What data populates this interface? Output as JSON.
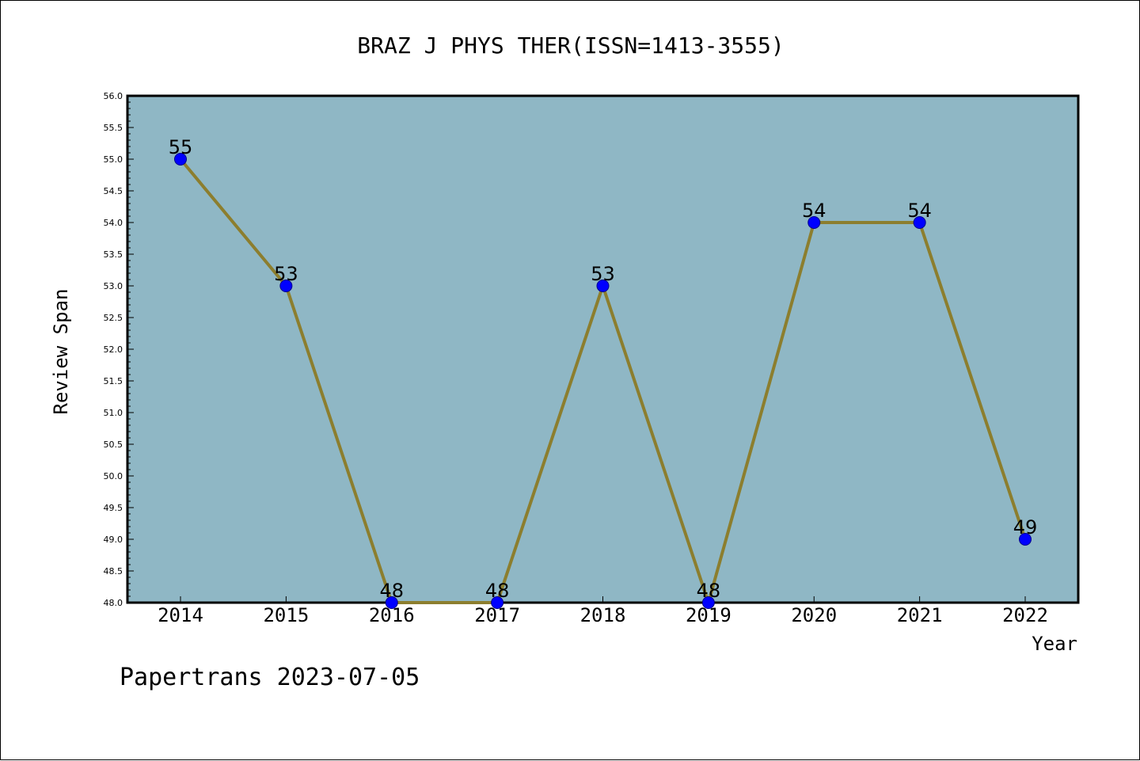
{
  "chart_data": {
    "type": "line",
    "title": "BRAZ J PHYS THER(ISSN=1413-3555)",
    "xlabel": "Year",
    "ylabel": "Review Span",
    "categories": [
      "2014",
      "2015",
      "2016",
      "2017",
      "2018",
      "2019",
      "2020",
      "2021",
      "2022"
    ],
    "series": [
      {
        "values": [
          55,
          53,
          48,
          48,
          53,
          48,
          54,
          54,
          49
        ]
      }
    ],
    "data_labels": [
      "55",
      "53",
      "48",
      "48",
      "53",
      "48",
      "54",
      "54",
      "49"
    ],
    "ylim": [
      48.0,
      56.0
    ],
    "yticks": [
      "48.0",
      "48.5",
      "49.0",
      "49.5",
      "50.0",
      "50.5",
      "51.0",
      "51.5",
      "52.0",
      "52.5",
      "53.0",
      "53.5",
      "54.0",
      "54.5",
      "55.0",
      "55.5",
      "56.0"
    ],
    "grid": false,
    "legend": "none",
    "colors": {
      "plot_background": "#8fb7c5",
      "line": "#8c7e2e",
      "marker": "#0000ff"
    }
  },
  "footer": "Papertrans 2023-07-05"
}
